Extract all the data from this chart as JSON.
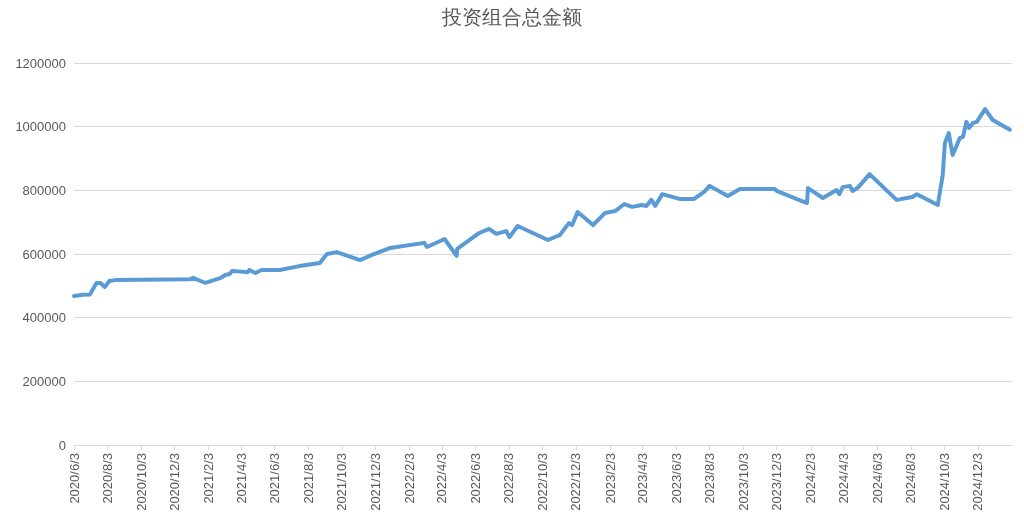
{
  "chart_data": {
    "type": "line",
    "title": "投资组合总金额",
    "x": [
      "2020-06-03",
      "2020-06-19",
      "2020-07-02",
      "2020-07-14",
      "2020-07-21",
      "2020-07-29",
      "2020-08-06",
      "2020-08-17",
      "2020-12-31",
      "2021-01-06",
      "2021-01-28",
      "2021-02-25",
      "2021-03-05",
      "2021-03-13",
      "2021-03-18",
      "2021-04-15",
      "2021-04-18",
      "2021-04-29",
      "2021-05-10",
      "2021-06-12",
      "2021-07-18",
      "2021-08-24",
      "2021-09-06",
      "2021-09-24",
      "2021-11-05",
      "2021-11-27",
      "2021-12-30",
      "2022-03-02",
      "2022-03-07",
      "2022-04-08",
      "2022-04-30",
      "2022-05-01",
      "2022-06-10",
      "2022-06-28",
      "2022-07-11",
      "2022-07-29",
      "2022-08-04",
      "2022-08-19",
      "2022-10-13",
      "2022-11-04",
      "2022-11-20",
      "2022-11-26",
      "2022-12-06",
      "2023-01-03",
      "2023-01-25",
      "2023-02-12",
      "2023-03-01",
      "2023-03-15",
      "2023-04-02",
      "2023-04-10",
      "2023-04-19",
      "2023-04-26",
      "2023-05-09",
      "2023-06-09",
      "2023-06-27",
      "2023-07-06",
      "2023-07-24",
      "2023-08-03",
      "2023-09-05",
      "2023-09-27",
      "2023-11-30",
      "2023-12-03",
      "2024-01-27",
      "2024-01-29",
      "2024-02-25",
      "2024-03-21",
      "2024-03-26",
      "2024-04-01",
      "2024-04-14",
      "2024-04-19",
      "2024-04-28",
      "2024-05-20",
      "2024-07-08",
      "2024-08-06",
      "2024-08-14",
      "2024-09-21",
      "2024-09-30",
      "2024-10-04",
      "2024-10-11",
      "2024-10-18",
      "2024-10-31",
      "2024-11-06",
      "2024-11-12",
      "2024-11-17",
      "2024-11-24",
      "2024-12-01",
      "2024-12-16",
      "2024-12-30",
      "2025-01-30"
    ],
    "series": [
      {
        "color": "#5b9bd5",
        "values": [
          468000,
          472000,
          473000,
          509000,
          509000,
          496000,
          515000,
          518000,
          521000,
          525000,
          509000,
          525000,
          534000,
          537000,
          547000,
          543000,
          550000,
          540000,
          550000,
          550000,
          562000,
          572000,
          600000,
          606000,
          581000,
          597000,
          619000,
          635000,
          622000,
          647000,
          594000,
          616000,
          666000,
          679000,
          663000,
          672000,
          653000,
          688000,
          644000,
          660000,
          697000,
          691000,
          732000,
          691000,
          729000,
          735000,
          757000,
          748000,
          754000,
          751000,
          770000,
          751000,
          788000,
          773000,
          773000,
          773000,
          795000,
          814000,
          782000,
          804000,
          804000,
          798000,
          760000,
          807000,
          776000,
          801000,
          788000,
          810000,
          814000,
          798000,
          807000,
          851000,
          770000,
          779000,
          788000,
          754000,
          848000,
          949000,
          980000,
          911000,
          964000,
          968000,
          1015000,
          996000,
          1012000,
          1015000,
          1055000,
          1021000,
          990000
        ]
      }
    ],
    "xlim": [
      "2020-06-03",
      "2025-02-03"
    ],
    "xticks": [
      {
        "value": "2020-06-03",
        "label": "2020/6/3"
      },
      {
        "value": "2020-08-03",
        "label": "2020/8/3"
      },
      {
        "value": "2020-10-03",
        "label": "2020/10/3"
      },
      {
        "value": "2020-12-03",
        "label": "2020/12/3"
      },
      {
        "value": "2021-02-03",
        "label": "2021/2/3"
      },
      {
        "value": "2021-04-03",
        "label": "2021/4/3"
      },
      {
        "value": "2021-06-03",
        "label": "2021/6/3"
      },
      {
        "value": "2021-08-03",
        "label": "2021/8/3"
      },
      {
        "value": "2021-10-03",
        "label": "2021/10/3"
      },
      {
        "value": "2021-12-03",
        "label": "2021/12/3"
      },
      {
        "value": "2022-02-03",
        "label": "2022/2/3"
      },
      {
        "value": "2022-04-03",
        "label": "2022/4/3"
      },
      {
        "value": "2022-06-03",
        "label": "2022/6/3"
      },
      {
        "value": "2022-08-03",
        "label": "2022/8/3"
      },
      {
        "value": "2022-10-03",
        "label": "2022/10/3"
      },
      {
        "value": "2022-12-03",
        "label": "2022/12/3"
      },
      {
        "value": "2023-02-03",
        "label": "2023/2/3"
      },
      {
        "value": "2023-04-03",
        "label": "2023/4/3"
      },
      {
        "value": "2023-06-03",
        "label": "2023/6/3"
      },
      {
        "value": "2023-08-03",
        "label": "2023/8/3"
      },
      {
        "value": "2023-10-03",
        "label": "2023/10/3"
      },
      {
        "value": "2023-12-03",
        "label": "2023/12/3"
      },
      {
        "value": "2024-02-03",
        "label": "2024/2/3"
      },
      {
        "value": "2024-04-03",
        "label": "2024/4/3"
      },
      {
        "value": "2024-06-03",
        "label": "2024/6/3"
      },
      {
        "value": "2024-08-03",
        "label": "2024/8/3"
      },
      {
        "value": "2024-10-03",
        "label": "2024/10/3"
      },
      {
        "value": "2024-12-03",
        "label": "2024/12/3"
      }
    ],
    "ylim": [
      0,
      1200000
    ],
    "yticks": [
      0,
      200000,
      400000,
      600000,
      800000,
      1000000,
      1200000
    ],
    "grid": "y",
    "marker": "none",
    "line_style": "solid"
  }
}
